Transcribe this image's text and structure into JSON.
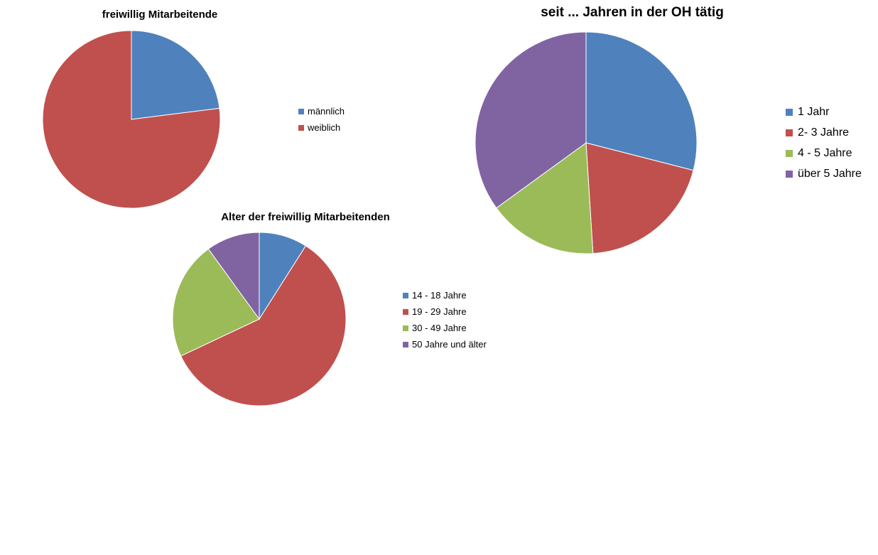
{
  "chart_data": [
    {
      "type": "pie",
      "title": "freiwillig Mitarbeitende",
      "categories": [
        "männlich",
        "weiblich"
      ],
      "values": [
        23,
        77
      ],
      "colors": [
        "#4F81BD",
        "#C0504D"
      ],
      "legend_position": "right"
    },
    {
      "type": "pie",
      "title": "Alter der freiwillig Mitarbeitenden",
      "categories": [
        "14 - 18 Jahre",
        "19 - 29 Jahre",
        "30 - 49 Jahre",
        "50 Jahre und älter"
      ],
      "values": [
        9,
        59,
        22,
        10
      ],
      "colors": [
        "#4F81BD",
        "#C0504D",
        "#9BBB59",
        "#8064A2"
      ],
      "legend_position": "right"
    },
    {
      "type": "pie",
      "title": "seit ... Jahren in der OH tätig",
      "categories": [
        "1 Jahr",
        "2- 3 Jahre",
        "4 - 5 Jahre",
        "über 5 Jahre"
      ],
      "values": [
        29,
        20,
        16,
        35
      ],
      "colors": [
        "#4F81BD",
        "#C0504D",
        "#9BBB59",
        "#8064A2"
      ],
      "legend_position": "right"
    }
  ]
}
